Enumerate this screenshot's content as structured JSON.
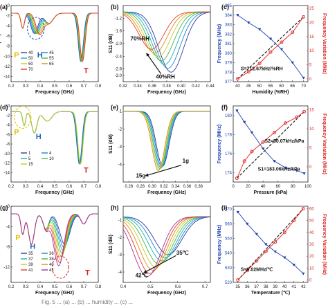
{
  "panels": [
    {
      "id": "a",
      "label": "(a)",
      "type": "line",
      "xlim": [
        0.2,
        0.8
      ],
      "ylim": [
        -15,
        0
      ],
      "xticks": [
        "0.2",
        "0.3",
        "0.4",
        "0.5",
        "0.6",
        "0.7",
        "0.8"
      ],
      "yticks": [
        "0",
        "-2",
        "-4",
        "-6",
        "-8",
        "-10",
        "-12",
        "-14"
      ],
      "xlabel": "Frequency (GHz)",
      "ylabel": "S11 (dB)",
      "legend_title": "",
      "legend": [
        "40",
        "45",
        "50",
        "55",
        "60",
        "65",
        "70"
      ],
      "annotations": [
        {
          "text": "P",
          "x": 0.22,
          "y": -10.2,
          "color": "#e8c000"
        },
        {
          "text": "H",
          "x": 0.38,
          "y": -10.2,
          "color": "#1f5fb4"
        },
        {
          "text": "T",
          "x": 0.7,
          "y": -13.3,
          "color": "#d62020"
        }
      ],
      "circle": {
        "x": 0.37,
        "y": -4.5,
        "color": "#1f5fb4"
      },
      "series_shape": "a",
      "shift": 0.006
    },
    {
      "id": "b",
      "label": "(b)",
      "type": "line",
      "xlim": [
        0.32,
        0.44
      ],
      "ylim": [
        -3.2,
        -0.8
      ],
      "xticks": [
        "0.32",
        "0.34",
        "0.36",
        "0.38",
        "0.40",
        "0.42",
        "0.44"
      ],
      "yticks": [
        "-1.2",
        "-1.6",
        "-2.0",
        "-2.4",
        "-2.8",
        "-3.0"
      ],
      "xlabel": "Frequency (GHz)",
      "ylabel": "S11 (dB)",
      "annotations": [
        {
          "text": "70%RH",
          "x": 0.33,
          "y": -1.9,
          "color": "#111111"
        },
        {
          "text": "40%RH",
          "x": 0.365,
          "y": -3.1,
          "color": "#111111"
        }
      ],
      "arrow": {
        "x1": 0.372,
        "y1": -2.95,
        "x2": 0.352,
        "y2": -2.3
      },
      "series_shape": "b"
    },
    {
      "id": "c",
      "label": "(c)",
      "type": "dual-line",
      "x": [
        40,
        45,
        50,
        55,
        60,
        65,
        70
      ],
      "xlim": [
        38,
        72
      ],
      "xticks": [
        "40",
        "45",
        "50",
        "55",
        "60",
        "65",
        "70"
      ],
      "y_left": [
        384,
        383.2,
        382.5,
        381.5,
        380.4,
        379,
        377.4
      ],
      "y_left_lim": [
        377,
        385
      ],
      "y_left_ticks": [
        "377",
        "378",
        "379",
        "380",
        "381",
        "382",
        "383",
        "384",
        "385"
      ],
      "y_right": [
        0,
        2.5,
        5.5,
        9.5,
        13,
        16.5,
        22
      ],
      "y_right_lim": [
        -1,
        26
      ],
      "y_right_ticks": [
        "0",
        "5",
        "10",
        "15",
        "20",
        "25"
      ],
      "xlabel": "Humidity (%RH)",
      "ylabel_left": "Frequency (MHz)",
      "ylabel_right": "Frequency Variation (MHz)",
      "annotation": "S=712.67kHz/%RH"
    },
    {
      "id": "d",
      "label": "(d)",
      "type": "line",
      "xlim": [
        0.2,
        0.8
      ],
      "ylim": [
        -16,
        0
      ],
      "xticks": [
        "0.2",
        "0.3",
        "0.4",
        "0.5",
        "0.6",
        "0.7",
        "0.8"
      ],
      "yticks": [
        "0",
        "-2",
        "-4",
        "-6",
        "-8",
        "-10",
        "-12",
        "-14"
      ],
      "xlabel": "Frequency (GHz)",
      "ylabel": "S11",
      "legend": [
        "1",
        "4",
        "5",
        "10",
        "15"
      ],
      "annotations": [
        {
          "text": "P",
          "x": 0.22,
          "y": -6,
          "color": "#e8c000"
        },
        {
          "text": "H",
          "x": 0.37,
          "y": -7,
          "color": "#1f5fb4"
        },
        {
          "text": "T",
          "x": 0.7,
          "y": -14,
          "color": "#d62020"
        }
      ],
      "circle": {
        "x": 0.28,
        "y": -2.4,
        "color": "#e8c000"
      },
      "series_shape": "d",
      "shift": 0.002
    },
    {
      "id": "e",
      "label": "(e)",
      "type": "line",
      "xlim": [
        0.25,
        0.4
      ],
      "ylim": [
        -5,
        -0.7
      ],
      "xticks": [
        "0.26",
        "0.28",
        "0.30",
        "0.32",
        "0.34",
        "0.36",
        "0.38"
      ],
      "yticks": [
        "-1",
        "-2",
        "-3",
        "-4"
      ],
      "xlabel": "Frequency (GHz)",
      "ylabel": "S11 (dB)",
      "annotations": [
        {
          "text": "1g",
          "x": 0.352,
          "y": -3.9,
          "color": "#111111"
        },
        {
          "text": "15g",
          "x": 0.272,
          "y": -4.75,
          "color": "#111111"
        }
      ],
      "arrow": {
        "x1": 0.35,
        "y1": -4.05,
        "x2": 0.288,
        "y2": -4.65
      },
      "series_shape": "e"
    },
    {
      "id": "f",
      "label": "(f)",
      "type": "dual-line",
      "x": [
        5,
        15,
        25,
        40,
        55,
        70,
        85,
        95
      ],
      "xlim": [
        0,
        100
      ],
      "xticks": [
        "0",
        "20",
        "40",
        "60",
        "80",
        "100"
      ],
      "y_left": [
        180.5,
        179.3,
        178.2,
        176.5,
        175.2,
        174.5,
        174.2,
        173.9
      ],
      "y_left_lim": [
        173,
        181
      ],
      "y_left_ticks": [
        "174",
        "176",
        "178",
        "180"
      ],
      "y_right": [
        -3,
        1.5,
        4,
        6.5,
        9,
        11.5,
        13,
        14.5
      ],
      "y_right_lim": [
        -4,
        16
      ],
      "y_right_ticks": [
        "0",
        "5",
        "10",
        "15"
      ],
      "xlabel": "Pressure (kPa)",
      "ylabel_left": "Frequency (MHz)",
      "ylabel_right": "Frequency Variation (MHz)",
      "annotation2": "S2=50.07kHz/kPa",
      "annotation": "S1=183.06kHz/kPa"
    },
    {
      "id": "g",
      "label": "(g)",
      "type": "line",
      "xlim": [
        0.2,
        0.8
      ],
      "ylim": [
        -15,
        0
      ],
      "xticks": [
        "0.2",
        "0.3",
        "0.4",
        "0.5",
        "0.6",
        "0.7",
        "0.8"
      ],
      "yticks": [
        "0",
        "-4",
        "-8",
        "-12"
      ],
      "xlabel": "Frequency (GHz)",
      "ylabel": "S11",
      "legend": [
        "35",
        "36",
        "37",
        "38",
        "39",
        "40",
        "41",
        "42"
      ],
      "annotations": [
        {
          "text": "P",
          "x": 0.23,
          "y": -6.7,
          "color": "#e8c000"
        },
        {
          "text": "H",
          "x": 0.33,
          "y": -8.4,
          "color": "#1f5fb4"
        },
        {
          "text": "T",
          "x": 0.71,
          "y": -13.6,
          "color": "#d62020"
        }
      ],
      "circle": {
        "x": 0.54,
        "y": -12,
        "color": "#d62020"
      },
      "series_shape": "g",
      "shift": 0.012
    },
    {
      "id": "h",
      "label": "(h)",
      "type": "line",
      "xlim": [
        0.4,
        0.72
      ],
      "ylim": [
        -4.6,
        -0.2
      ],
      "xticks": [
        "0.4",
        "0.5",
        "0.6",
        "0.7"
      ],
      "yticks": [
        "-1",
        "-2",
        "-3",
        "-4"
      ],
      "xlabel": "Frequency (GHz)",
      "ylabel": "S11 (dB)",
      "annotations": [
        {
          "text": "35℃",
          "x": 0.595,
          "y": -3.0,
          "color": "#111111"
        },
        {
          "text": "42℃",
          "x": 0.445,
          "y": -4.3,
          "color": "#111111"
        }
      ],
      "arrow": {
        "x1": 0.594,
        "y1": -3.05,
        "x2": 0.475,
        "y2": -4.05
      },
      "series_shape": "h"
    },
    {
      "id": "i",
      "label": "(i)",
      "type": "dual-line",
      "x": [
        35,
        36,
        37,
        38,
        39,
        40,
        41,
        42
      ],
      "xlim": [
        34.5,
        42.5
      ],
      "xticks": [
        "35",
        "36",
        "37",
        "38",
        "39",
        "40",
        "41",
        "42"
      ],
      "y_left": [
        568,
        560,
        553,
        546,
        541,
        537,
        532,
        526
      ],
      "y_left_lim": [
        520,
        572
      ],
      "y_left_ticks": [
        "520",
        "530",
        "540",
        "550",
        "560",
        "570"
      ],
      "y_right": [
        0,
        8,
        16,
        24,
        32,
        40,
        50,
        60
      ],
      "y_right_lim": [
        -2,
        62
      ],
      "y_right_ticks": [
        "0",
        "10",
        "20",
        "30",
        "40",
        "50",
        "60"
      ],
      "xlabel": "Temperature (℃)",
      "ylabel_left": "Frequency (MHz)",
      "ylabel_right": "Frequency Variation (MHz)",
      "annotation": "S=9.02MHz/℃"
    }
  ],
  "palette": [
    "#2f3b9a",
    "#1f7fd1",
    "#18b0b0",
    "#3fb94a",
    "#c8c820",
    "#e08a1e",
    "#e0402a",
    "#a033a0"
  ],
  "colors": {
    "left": "#1f3fb0",
    "right": "#e02020",
    "fit": "#111111"
  },
  "caption": "Fig. 5 ... (a) ... (b) ... humidity ... (c) ..."
}
